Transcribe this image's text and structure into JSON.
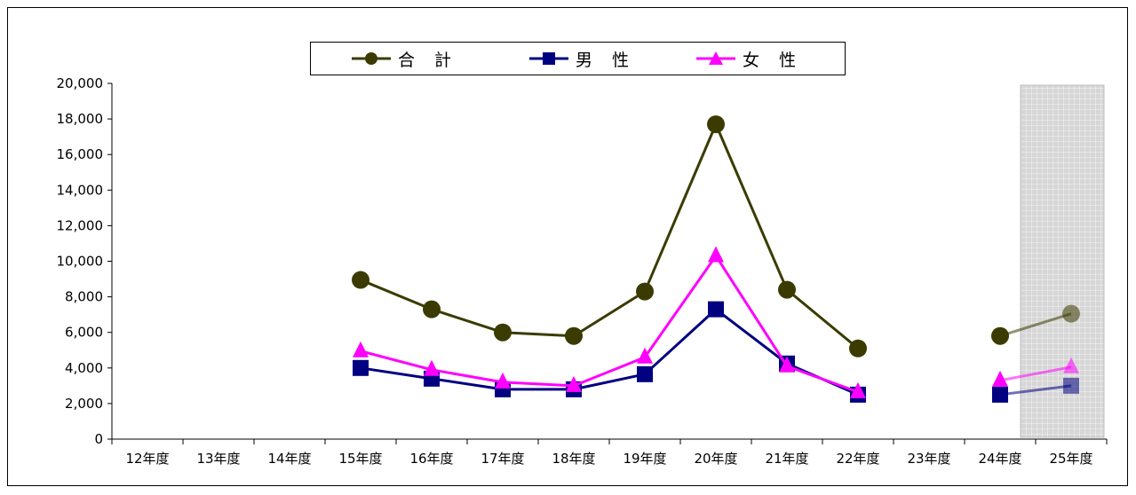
{
  "chart_data": {
    "type": "line",
    "categories": [
      "12年度",
      "13年度",
      "14年度",
      "15年度",
      "16年度",
      "17年度",
      "18年度",
      "19年度",
      "20年度",
      "21年度",
      "22年度",
      "23年度",
      "24年度",
      "25年度"
    ],
    "ylim": [
      0,
      20000
    ],
    "yticks": [
      "0",
      "2,000",
      "4,000",
      "6,000",
      "8,000",
      "10,000",
      "12,000",
      "14,000",
      "16,000",
      "18,000",
      "20,000"
    ],
    "grid": false,
    "legend_position": "top",
    "highlight_category": "25年度",
    "series": [
      {
        "name": "合 計",
        "color": "#3b3b00",
        "marker": "circle",
        "values": [
          null,
          null,
          null,
          8950,
          7300,
          6000,
          5800,
          8300,
          17700,
          8400,
          5100,
          null,
          5800,
          7050
        ]
      },
      {
        "name": "男 性",
        "color": "#000080",
        "marker": "square",
        "values": [
          null,
          null,
          null,
          4000,
          3400,
          2800,
          2800,
          3650,
          7300,
          4250,
          2500,
          null,
          2500,
          3000
        ]
      },
      {
        "name": "女 性",
        "color": "#ff00ff",
        "marker": "triangle",
        "values": [
          null,
          null,
          null,
          4950,
          3900,
          3200,
          3000,
          4600,
          10300,
          4100,
          2650,
          null,
          3300,
          4050
        ]
      }
    ]
  }
}
